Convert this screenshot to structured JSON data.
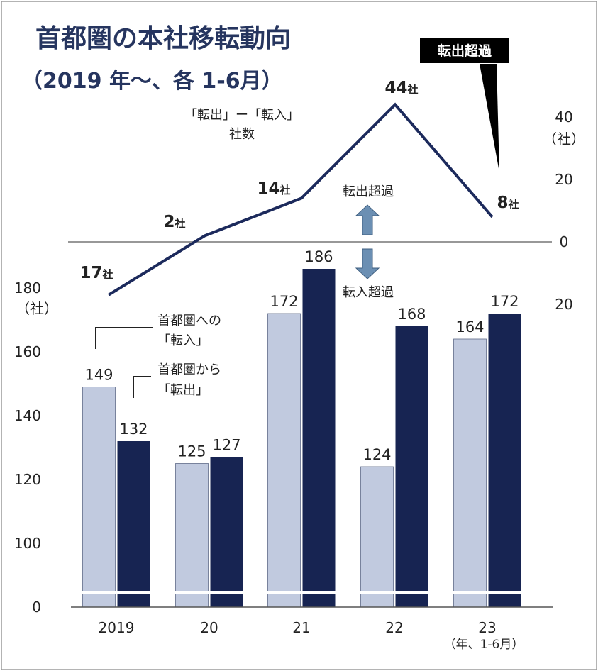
{
  "title": "首都圏の本社移転動向",
  "subtitle": "（2019 年～、各 1-6月）",
  "colors": {
    "title": "#26355f",
    "bar_in": "#c1cadf",
    "bar_out": "#172452",
    "line": "#1c2a5c",
    "arrow": "#6b8fb3",
    "axis": "#777777",
    "callout_bg": "#000000",
    "callout_text": "#ffffff"
  },
  "chart_data": [
    {
      "type": "bar",
      "categories": [
        "2019",
        "20",
        "21",
        "22",
        "23"
      ],
      "category_note": "（年、1-6月）",
      "series": [
        {
          "name": "首都圏への「転入」",
          "values": [
            149,
            125,
            172,
            124,
            164
          ]
        },
        {
          "name": "首都圏から「転出」",
          "values": [
            132,
            127,
            186,
            168,
            172
          ]
        }
      ],
      "value_labels": {
        "in": [
          "149",
          "125",
          "172",
          "124",
          "164"
        ],
        "out": [
          "132",
          "127",
          "186",
          "168",
          "172"
        ]
      },
      "ylim": [
        0,
        180
      ],
      "yticks": [
        0,
        100,
        120,
        140,
        160,
        180
      ],
      "ytick_labels": [
        "0",
        "100",
        "120",
        "140",
        "160",
        "180"
      ],
      "yunit": "（社）",
      "axis_break": true,
      "legend": {
        "in_line1": "首都圏への",
        "in_line2": "「転入」",
        "out_line1": "首都圏から",
        "out_line2": "「転出」"
      }
    },
    {
      "type": "line",
      "name": "「転出」ー「転入」社数",
      "caption_line1": "「転出」ー「転入」",
      "caption_line2": "社数",
      "x": [
        "2019",
        "20",
        "21",
        "22",
        "23"
      ],
      "values": [
        -17,
        2,
        14,
        44,
        8
      ],
      "point_labels": [
        "17",
        "2",
        "14",
        "44",
        "8"
      ],
      "point_suffix": "社",
      "ylim": [
        -20,
        44
      ],
      "yticks": [
        40,
        20,
        0,
        -20
      ],
      "ytick_labels": [
        "40",
        "20",
        "0",
        "20"
      ],
      "yunit": "（社）",
      "annotations": {
        "up": "転出超過",
        "down": "転入超過",
        "callout": "転出超過"
      }
    }
  ]
}
